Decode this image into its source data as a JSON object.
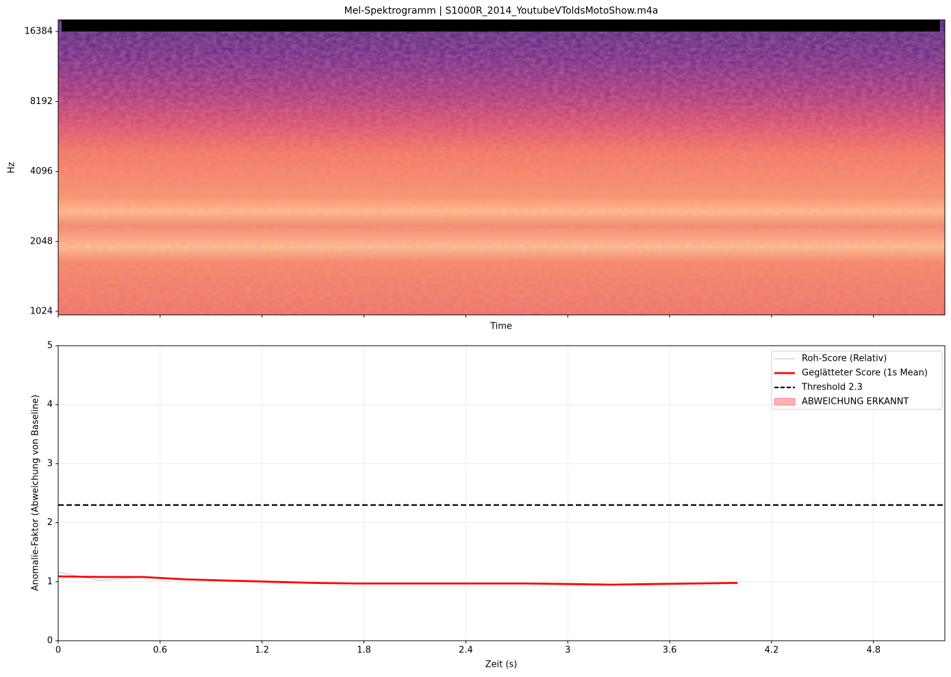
{
  "chart_data": [
    {
      "type": "spectrogram",
      "title": "Mel-Spektrogramm | S1000R_2014_YoutubeVToldsMotoShow.m4a",
      "ylabel": "Hz",
      "xlabel": "Time",
      "log_scale_y": true,
      "log_base": 2,
      "colormap": "magma",
      "ylim": [
        990,
        18400
      ],
      "yticks": [
        1024,
        2048,
        4096,
        8192,
        16384
      ]
    },
    {
      "type": "line",
      "ylabel": "Anomalie-Faktor (Abweichung von Baseline)",
      "xlabel": "Zeit (s)",
      "xlim": [
        0,
        5.22
      ],
      "ylim": [
        0,
        5
      ],
      "xticks": [
        0,
        0.6,
        1.2,
        1.8,
        2.4,
        3,
        3.6,
        4.2,
        4.8
      ],
      "yticks": [
        0,
        1,
        2,
        3,
        4,
        5
      ],
      "grid": true,
      "legend": "upper right",
      "x": [
        0,
        0.25,
        0.5,
        0.75,
        1.0,
        1.25,
        1.5,
        1.75,
        2.0,
        2.25,
        2.5,
        2.75,
        3.0,
        3.25,
        3.5,
        3.75,
        4.0
      ],
      "series": [
        {
          "name": "Roh-Score (Relativ)",
          "color": "#d3d3d3",
          "values": [
            1.16,
            1.02,
            1.08,
            1.04,
            1.01,
            0.99,
            0.98,
            0.97,
            0.97,
            0.97,
            0.97,
            0.97,
            0.96,
            0.95,
            0.96,
            0.97,
            0.98
          ]
        },
        {
          "name": "Geglätteter Score (1s Mean)",
          "color": "#ff0000",
          "values": [
            1.09,
            1.08,
            1.08,
            1.04,
            1.02,
            1.0,
            0.98,
            0.97,
            0.97,
            0.97,
            0.97,
            0.97,
            0.96,
            0.95,
            0.96,
            0.97,
            0.98
          ]
        }
      ],
      "threshold": {
        "name": "Threshold 2.3",
        "value": 2.3,
        "color": "#000000"
      },
      "fill": {
        "name": "ABWEICHUNG ERKANNT",
        "color": "#ff0000"
      }
    }
  ]
}
